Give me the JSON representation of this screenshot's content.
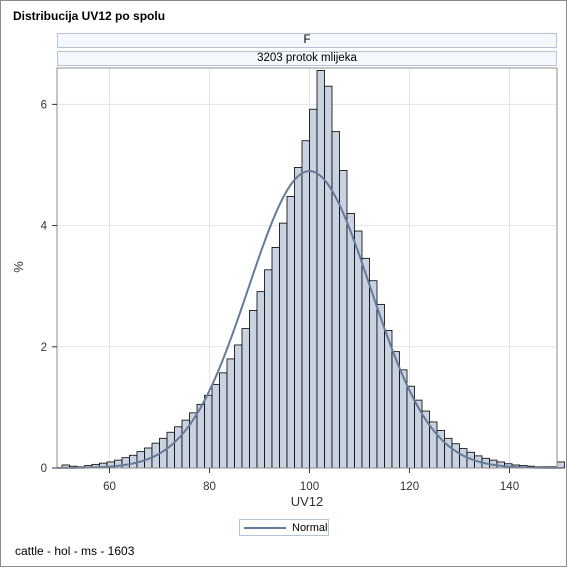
{
  "chart_data": {
    "type": "bar",
    "title": "Distribucija UV12 po spolu",
    "panel_labels": [
      "F",
      "3203 protok mlijeka"
    ],
    "xlabel": "UV12",
    "ylabel": "%",
    "xlim": [
      49.5,
      149.5
    ],
    "ylim": [
      0,
      6.6
    ],
    "xticks": [
      60,
      80,
      100,
      120,
      140
    ],
    "yticks": [
      0,
      2,
      4,
      6
    ],
    "bin_width": 1.5,
    "bin_start": 50.5,
    "values": [
      0.05,
      0.03,
      0.02,
      0.04,
      0.06,
      0.08,
      0.1,
      0.13,
      0.17,
      0.21,
      0.27,
      0.33,
      0.41,
      0.49,
      0.59,
      0.68,
      0.79,
      0.91,
      1.05,
      1.2,
      1.38,
      1.57,
      1.8,
      2.03,
      2.3,
      2.6,
      2.91,
      3.27,
      3.64,
      4.04,
      4.48,
      4.96,
      5.4,
      5.92,
      6.56,
      6.3,
      5.55,
      4.91,
      4.2,
      3.91,
      3.46,
      3.09,
      2.7,
      2.27,
      1.92,
      1.62,
      1.35,
      1.12,
      0.94,
      0.76,
      0.62,
      0.49,
      0.4,
      0.32,
      0.26,
      0.2,
      0.16,
      0.13,
      0.1,
      0.07,
      0.05,
      0.04,
      0.03,
      0.02,
      0.02,
      0.02,
      0.1
    ],
    "series": [
      {
        "name": "Normal",
        "type": "line",
        "distribution": "normal",
        "mean": 100,
        "std": 12.2,
        "peak_percent": 4.9,
        "color": "#667a99"
      }
    ],
    "colors": {
      "bar_fill": "#c8d2e0",
      "bar_stroke": "#000000",
      "curve": "#667a99",
      "grid": "#e4e4e4"
    },
    "grid": true,
    "legend": {
      "position": "bottom-center",
      "entries": [
        "Normal"
      ]
    }
  },
  "footnote": "cattle - hol - ms - 1603"
}
